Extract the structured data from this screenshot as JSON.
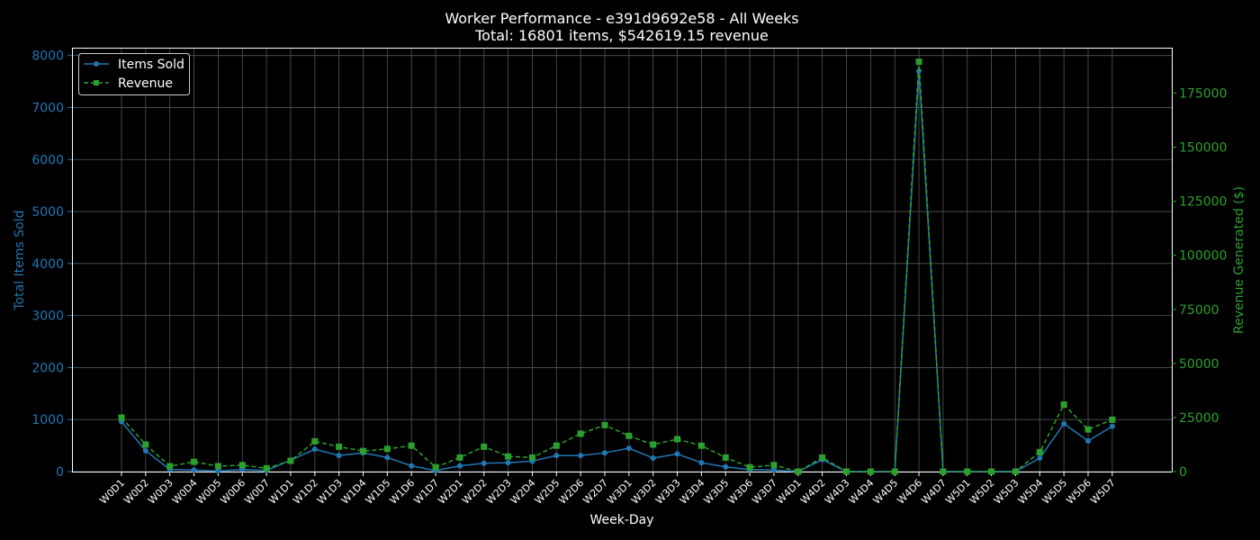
{
  "chart_data": {
    "type": "line",
    "title": "Worker Performance - e391d9692e58 - All Weeks",
    "subtitle": "Total: 16801 items, $542619.15 revenue",
    "xlabel": "Week-Day",
    "ylabel_left": "Total Items Sold",
    "ylabel_right": "Revenue Generated ($)",
    "categories": [
      "W0D1",
      "W0D2",
      "W0D3",
      "W0D4",
      "W0D5",
      "W0D6",
      "W0D7",
      "W1D1",
      "W1D2",
      "W1D3",
      "W1D4",
      "W1D5",
      "W1D6",
      "W1D7",
      "W2D1",
      "W2D2",
      "W2D3",
      "W2D4",
      "W2D5",
      "W2D6",
      "W2D7",
      "W3D1",
      "W3D2",
      "W3D3",
      "W3D4",
      "W3D5",
      "W3D6",
      "W3D7",
      "W4D1",
      "W4D2",
      "W4D3",
      "W4D4",
      "W4D5",
      "W4D6",
      "W4D7",
      "W5D1",
      "W5D2",
      "W5D3",
      "W5D4",
      "W5D5",
      "W5D6",
      "W5D7"
    ],
    "left_axis": {
      "ylim": [
        0,
        8150
      ],
      "ticks": [
        0,
        1000,
        2000,
        3000,
        4000,
        5000,
        6000,
        7000,
        8000
      ]
    },
    "right_axis": {
      "ylim": [
        0,
        196000
      ],
      "ticks": [
        0,
        25000,
        50000,
        75000,
        100000,
        125000,
        150000,
        175000
      ]
    },
    "grid": true,
    "legend_position": "top-left",
    "series": [
      {
        "name": "Items Sold",
        "axis": "left",
        "color": "#1f77b4",
        "line_style": "solid",
        "marker": "circle",
        "values": [
          960,
          400,
          40,
          30,
          10,
          40,
          20,
          220,
          430,
          310,
          360,
          270,
          110,
          20,
          110,
          160,
          170,
          200,
          310,
          310,
          360,
          450,
          260,
          340,
          170,
          90,
          40,
          30,
          0,
          230,
          0,
          0,
          0,
          7700,
          0,
          0,
          0,
          0,
          260,
          920,
          590,
          870
        ]
      },
      {
        "name": "Revenue",
        "axis": "right",
        "color": "#2ca02c",
        "line_style": "dashed",
        "marker": "square",
        "values": [
          25000,
          12500,
          2500,
          4500,
          2500,
          3000,
          1500,
          5000,
          14000,
          11500,
          9500,
          10500,
          12000,
          2000,
          6500,
          11500,
          7000,
          6500,
          12000,
          17500,
          21500,
          16500,
          12500,
          15000,
          12000,
          6500,
          2000,
          3000,
          0,
          6500,
          0,
          0,
          0,
          189500,
          0,
          0,
          0,
          0,
          9000,
          31000,
          19500,
          24000
        ]
      }
    ]
  }
}
